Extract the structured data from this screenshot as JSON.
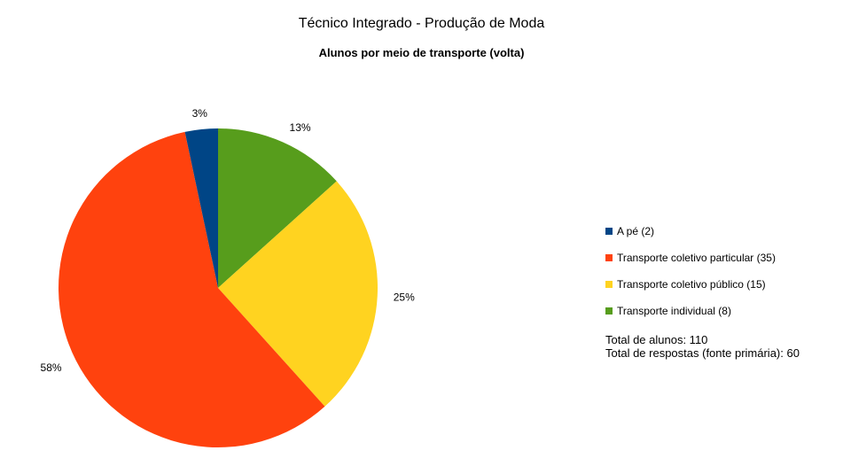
{
  "chart_data": {
    "type": "pie",
    "title": "Técnico Integrado - Produção de Moda",
    "subtitle": "Alunos por meio de transporte (volta)",
    "slices": [
      {
        "name": "A pé (2)",
        "value": 2,
        "label": "3%",
        "color": "#004586"
      },
      {
        "name": "Transporte coletivo particular (35)",
        "value": 35,
        "label": "58%",
        "color": "#ff420e"
      },
      {
        "name": "Transporte coletivo público (15)",
        "value": 15,
        "label": "25%",
        "color": "#ffd320"
      },
      {
        "name": "Transporte individual (8)",
        "value": 8,
        "label": "13%",
        "color": "#579d1c"
      }
    ],
    "legend_position": "right",
    "notes": [
      "Total de alunos: 110",
      "Total de respostas (fonte primária): 60"
    ]
  }
}
